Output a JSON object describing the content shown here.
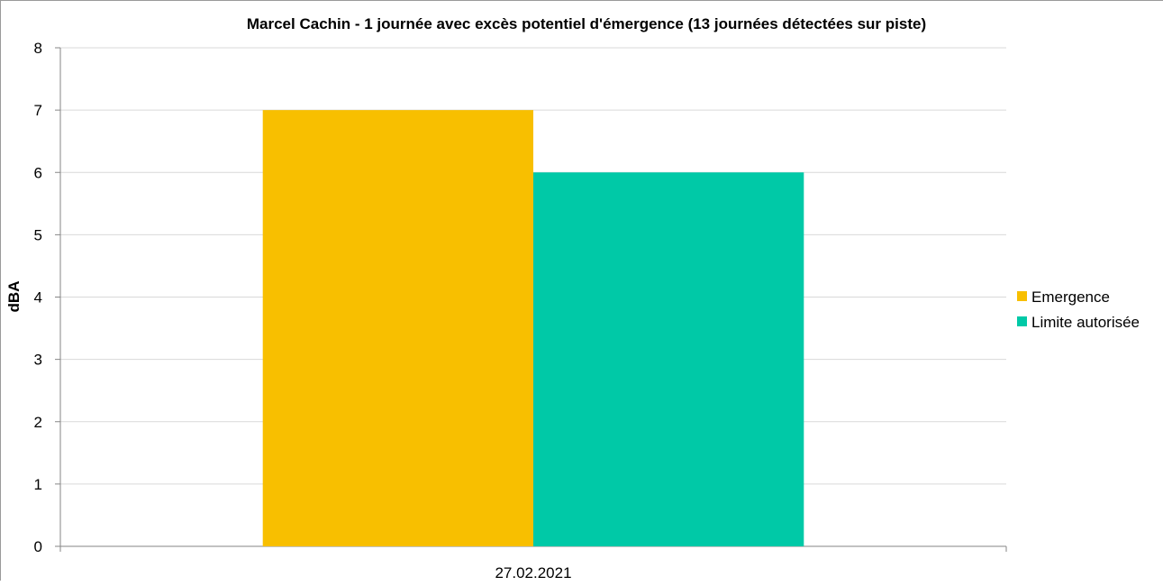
{
  "chart_data": {
    "type": "bar",
    "title": "Marcel Cachin - 1 journée avec excès potentiel d'émergence (13 journées détectées sur piste)",
    "xlabel": "",
    "ylabel": "dBA",
    "categories": [
      "27.02.2021"
    ],
    "series": [
      {
        "name": "Emergence",
        "values": [
          7
        ],
        "color": "#F8BF00"
      },
      {
        "name": "Limite autorisée",
        "values": [
          6
        ],
        "color": "#00C9A7"
      }
    ],
    "ylim": [
      0,
      8
    ],
    "yticks": [
      "0",
      "1",
      "2",
      "3",
      "4",
      "5",
      "6",
      "7",
      "8"
    ],
    "grid": true,
    "legend_position": "right"
  }
}
